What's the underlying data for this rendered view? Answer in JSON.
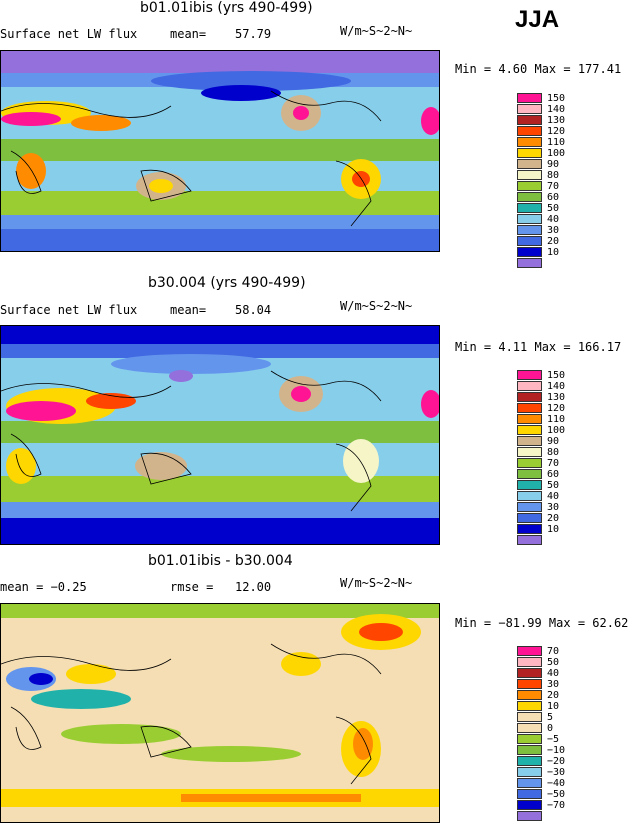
{
  "season": "JJA",
  "panels": [
    {
      "title": "b01.01ibis (yrs 490-499)",
      "left_label": "Surface net LW flux",
      "stat_label": "mean=",
      "stat_value": "57.79",
      "units": "W/m~S~2~N~",
      "minmax": "Min =   4.60 Max = 177.41",
      "legend_labels": [
        "150",
        "140",
        "130",
        "120",
        "110",
        "100",
        "90",
        "80",
        "70",
        "60",
        "50",
        "40",
        "30",
        "20",
        "10"
      ]
    },
    {
      "title": "b30.004 (yrs 490-499)",
      "left_label": "Surface net LW flux",
      "stat_label": "mean=",
      "stat_value": "58.04",
      "units": "W/m~S~2~N~",
      "minmax": "Min =   4.11 Max = 166.17",
      "legend_labels": [
        "150",
        "140",
        "130",
        "120",
        "110",
        "100",
        "90",
        "80",
        "70",
        "60",
        "50",
        "40",
        "30",
        "20",
        "10"
      ]
    },
    {
      "title": "b01.01ibis - b30.004",
      "left_label": "mean =  −0.25",
      "stat_label": "rmse =",
      "stat_value": "12.00",
      "units": "W/m~S~2~N~",
      "minmax": "Min = −81.99 Max =  62.62",
      "legend_labels": [
        "70",
        "50",
        "40",
        "30",
        "20",
        "10",
        "5",
        "0",
        "−5",
        "−10",
        "−20",
        "−30",
        "−40",
        "−50",
        "−70"
      ]
    }
  ],
  "colors": {
    "abs_scale": [
      "#ff1493",
      "#ffb6c1",
      "#b22222",
      "#ff4500",
      "#ff8c00",
      "#ffd700",
      "#d2b48c",
      "#f5f5c8",
      "#9acd32",
      "#7fbf3f",
      "#20b2aa",
      "#87ceeb",
      "#6495ed",
      "#4169e1",
      "#0000cd",
      "#9370db"
    ],
    "diff_scale": [
      "#ff1493",
      "#ffb6c1",
      "#b22222",
      "#ff4500",
      "#ff8c00",
      "#ffd700",
      "#f5deb3",
      "#f5deb3",
      "#9acd32",
      "#7fbf3f",
      "#20b2aa",
      "#87ceeb",
      "#6495ed",
      "#4169e1",
      "#0000cd",
      "#9370db"
    ]
  }
}
